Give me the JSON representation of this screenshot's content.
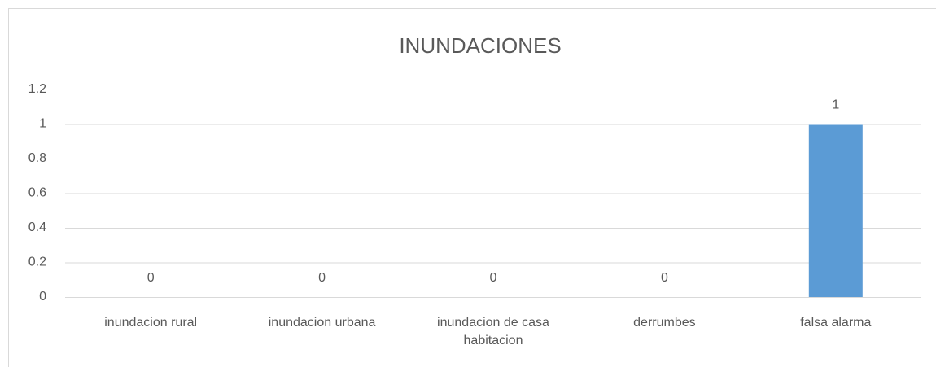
{
  "chart_data": {
    "type": "bar",
    "title": "INUNDACIONES",
    "categories": [
      "inundacion rural",
      "inundacion urbana",
      "inundacion de casa habitacion",
      "derrumbes",
      "falsa alarma"
    ],
    "values": [
      0,
      0,
      0,
      0,
      1
    ],
    "color": "#5b9bd5",
    "ylim": [
      0,
      1.2
    ],
    "yticks": [
      0,
      0.2,
      0.4,
      0.6,
      0.8,
      1,
      1.2
    ],
    "grid": true
  }
}
